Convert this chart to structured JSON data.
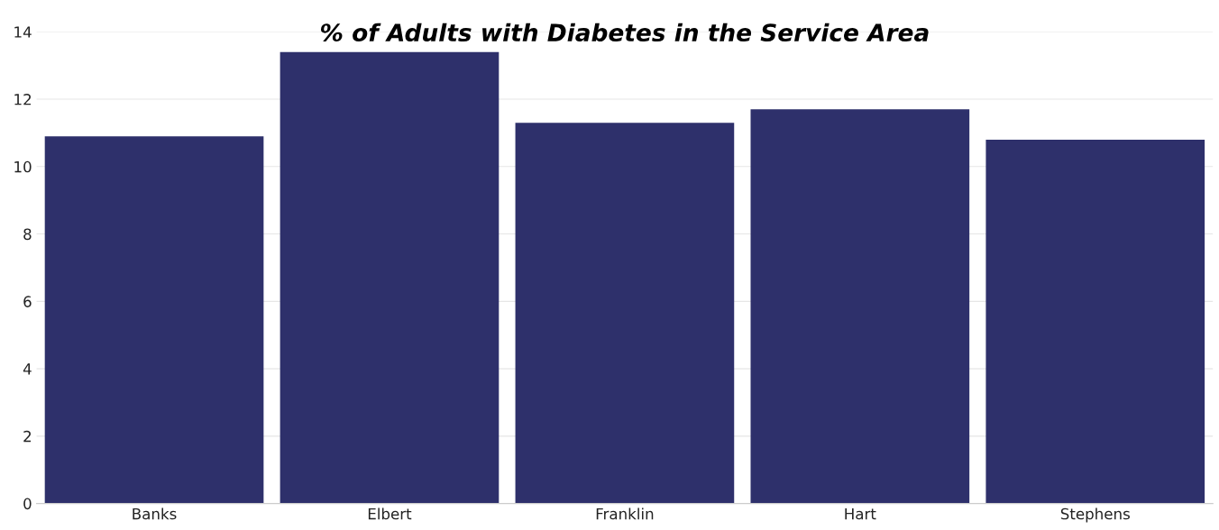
{
  "chart_data": {
    "type": "bar",
    "title": "% of Adults with Diabetes in the Service Area",
    "categories": [
      "Banks",
      "Elbert",
      "Franklin",
      "Hart",
      "Stephens"
    ],
    "values": [
      10.9,
      13.4,
      11.3,
      11.7,
      10.8
    ],
    "color": "#2e306b",
    "ylim": [
      0,
      14
    ],
    "yticks": [
      0,
      2,
      4,
      6,
      8,
      10,
      12,
      14
    ],
    "grid": "y"
  }
}
